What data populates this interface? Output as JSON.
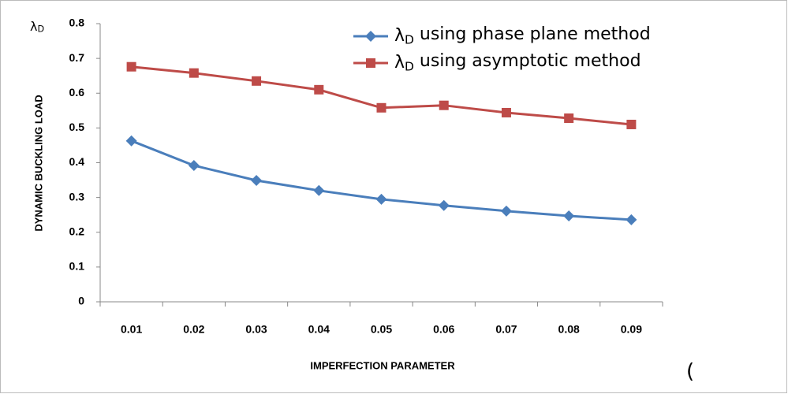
{
  "chart_data": {
    "type": "line",
    "y_symbol": "λD",
    "y_label": "DYNAMIC BUCKLING LOAD",
    "x_label": "IMPERFECTION PARAMETER",
    "annotation": "(",
    "categories": [
      "0.01",
      "0.02",
      "0.03",
      "0.04",
      "0.05",
      "0.06",
      "0.07",
      "0.08",
      "0.09"
    ],
    "series": [
      {
        "name": "λD using phase plane method",
        "color": "#4a7ebb",
        "marker": "diamond",
        "values": [
          0.463,
          0.392,
          0.349,
          0.32,
          0.295,
          0.277,
          0.261,
          0.247,
          0.236
        ]
      },
      {
        "name": "λD using asymptotic method",
        "color": "#be4b48",
        "marker": "square",
        "values": [
          0.676,
          0.658,
          0.635,
          0.61,
          0.558,
          0.565,
          0.544,
          0.528,
          0.51
        ]
      }
    ],
    "ylim": [
      0,
      0.8
    ],
    "yticks": [
      0,
      0.1,
      0.2,
      0.3,
      0.4,
      0.5,
      0.6,
      0.7,
      0.8
    ],
    "grid": false
  }
}
